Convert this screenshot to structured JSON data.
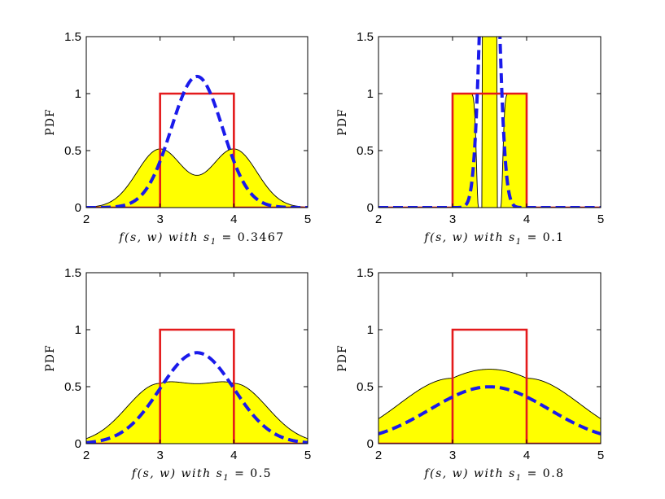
{
  "chart_data": [
    {
      "type": "line",
      "panel": "top-left",
      "s1_label": "0.3467",
      "xlabel_prefix": "f(s, w) with s",
      "xlabel_sub": "1",
      "xlabel_value": "= 0.3467",
      "ylabel": "PDF",
      "xlim": [
        2,
        5
      ],
      "ylim": [
        0,
        1.5
      ],
      "xticks": [
        "2",
        "3",
        "4",
        "5"
      ],
      "yticks": [
        "0",
        "0.5",
        "1",
        "1.5"
      ],
      "series": [
        {
          "name": "uniform (red)",
          "color": "#e41a1c",
          "shape": "uniform",
          "low": 3,
          "high": 4,
          "height": 1
        },
        {
          "name": "gaussian (blue dashed)",
          "color": "#1a1aeb",
          "shape": "gaussian",
          "mean": 3.5,
          "sigma": 0.3467
        },
        {
          "name": "f(s,w) (yellow fill)",
          "color": "#ffff00",
          "shape": "product",
          "s1": 0.3467
        }
      ]
    },
    {
      "type": "line",
      "panel": "top-right",
      "s1_label": "0.1",
      "xlabel_prefix": "f(s, w) with s",
      "xlabel_sub": "1",
      "xlabel_value": "= 0.1",
      "ylabel": "PDF",
      "xlim": [
        2,
        5
      ],
      "ylim": [
        0,
        1.5
      ],
      "xticks": [
        "2",
        "3",
        "4",
        "5"
      ],
      "yticks": [
        "0",
        "0.5",
        "1",
        "1.5"
      ],
      "series": [
        {
          "name": "uniform (red)",
          "color": "#e41a1c",
          "shape": "uniform",
          "low": 3,
          "high": 4,
          "height": 1
        },
        {
          "name": "gaussian (blue dashed)",
          "color": "#1a1aeb",
          "shape": "gaussian",
          "mean": 3.5,
          "sigma": 0.1
        },
        {
          "name": "f(s,w) (yellow fill)",
          "color": "#ffff00",
          "shape": "product",
          "s1": 0.1
        }
      ]
    },
    {
      "type": "line",
      "panel": "bottom-left",
      "s1_label": "0.5",
      "xlabel_prefix": "f(s, w) with s",
      "xlabel_sub": "1",
      "xlabel_value": "= 0.5",
      "ylabel": "PDF",
      "xlim": [
        2,
        5
      ],
      "ylim": [
        0,
        1.5
      ],
      "xticks": [
        "2",
        "3",
        "4",
        "5"
      ],
      "yticks": [
        "0",
        "0.5",
        "1",
        "1.5"
      ],
      "series": [
        {
          "name": "uniform (red)",
          "color": "#e41a1c",
          "shape": "uniform",
          "low": 3,
          "high": 4,
          "height": 1
        },
        {
          "name": "gaussian (blue dashed)",
          "color": "#1a1aeb",
          "shape": "gaussian",
          "mean": 3.5,
          "sigma": 0.5
        },
        {
          "name": "f(s,w) (yellow fill)",
          "color": "#ffff00",
          "shape": "product",
          "s1": 0.5
        }
      ]
    },
    {
      "type": "line",
      "panel": "bottom-right",
      "s1_label": "0.8",
      "xlabel_prefix": "f(s, w) with s",
      "xlabel_sub": "1",
      "xlabel_value": "= 0.8",
      "ylabel": "PDF",
      "xlim": [
        2,
        5
      ],
      "ylim": [
        0,
        1.5
      ],
      "xticks": [
        "2",
        "3",
        "4",
        "5"
      ],
      "yticks": [
        "0",
        "0.5",
        "1",
        "1.5"
      ],
      "series": [
        {
          "name": "uniform (red)",
          "color": "#e41a1c",
          "shape": "uniform",
          "low": 3,
          "high": 4,
          "height": 1
        },
        {
          "name": "gaussian (blue dashed)",
          "color": "#1a1aeb",
          "shape": "gaussian",
          "mean": 3.5,
          "sigma": 0.8
        },
        {
          "name": "f(s,w) (yellow fill)",
          "color": "#ffff00",
          "shape": "product",
          "s1": 0.8
        }
      ]
    }
  ]
}
